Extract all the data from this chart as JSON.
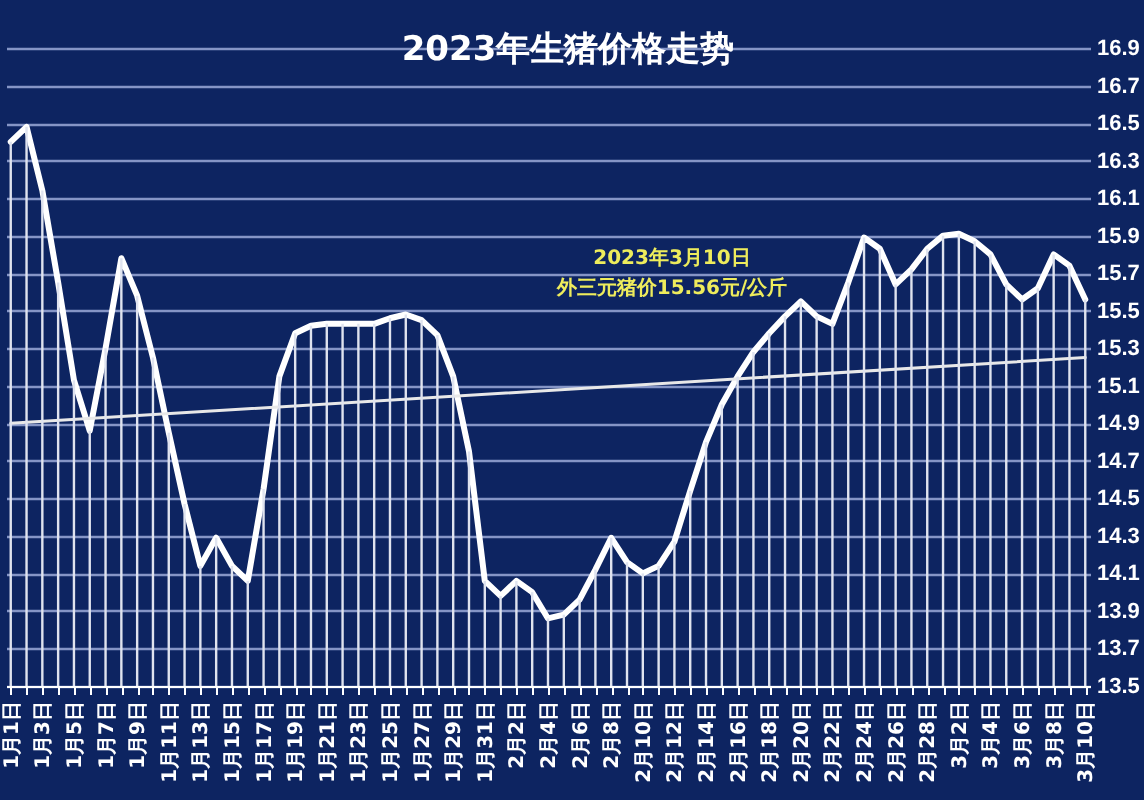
{
  "chart_data": {
    "type": "line",
    "title": "2023年生猪价格走势",
    "categories": [
      "1月1日",
      null,
      "1月3日",
      null,
      "1月5日",
      null,
      "1月7日",
      null,
      "1月9日",
      null,
      "1月11日",
      null,
      "1月13日",
      null,
      "1月15日",
      null,
      "1月17日",
      null,
      "1月19日",
      null,
      "1月21日",
      null,
      "1月23日",
      null,
      "1月25日",
      null,
      "1月27日",
      null,
      "1月29日",
      null,
      "1月31日",
      null,
      "2月2日",
      null,
      "2月4日",
      null,
      "2月6日",
      null,
      "2月8日",
      null,
      "2月10日",
      null,
      "2月12日",
      null,
      "2月14日",
      null,
      "2月16日",
      null,
      "2月18日",
      null,
      "2月20日",
      null,
      "2月22日",
      null,
      "2月24日",
      null,
      "2月26日",
      null,
      "2月28日",
      null,
      "3月2日",
      null,
      "3月4日",
      null,
      "3月6日",
      null,
      "3月8日",
      null,
      "3月10日"
    ],
    "series": [
      {
        "color": "#ffffff",
        "values": [
          16.4,
          16.48,
          16.14,
          15.65,
          15.13,
          14.86,
          15.3,
          15.78,
          15.58,
          15.25,
          14.85,
          14.47,
          14.14,
          14.29,
          14.14,
          14.06,
          14.55,
          15.15,
          15.38,
          15.42,
          15.43,
          15.43,
          15.43,
          15.43,
          15.46,
          15.48,
          15.45,
          15.37,
          15.15,
          14.75,
          14.06,
          13.98,
          14.06,
          14.0,
          13.86,
          13.88,
          13.96,
          14.12,
          14.29,
          14.16,
          14.1,
          14.14,
          14.27,
          14.54,
          14.8,
          15.0,
          15.15,
          15.28,
          15.38,
          15.47,
          15.55,
          15.47,
          15.43,
          15.65,
          15.89,
          15.83,
          15.64,
          15.72,
          15.83,
          15.9,
          15.91,
          15.87,
          15.8,
          15.64,
          15.56,
          15.62,
          15.8,
          15.74,
          15.56
        ]
      },
      {
        "type": "line",
        "color": "#e8e8e8",
        "x": [
          "1月1日",
          "3月10日"
        ],
        "values": [
          14.9,
          15.25
        ]
      },
      {
        "type": "bar",
        "color": "#dfe3ef",
        "values": [
          16.4,
          16.48,
          16.14,
          15.65,
          15.13,
          14.86,
          15.3,
          15.78,
          15.58,
          15.25,
          14.85,
          14.47,
          14.14,
          14.29,
          14.14,
          14.06,
          14.55,
          15.15,
          15.38,
          15.42,
          15.43,
          15.43,
          15.43,
          15.43,
          15.46,
          15.48,
          15.45,
          15.37,
          15.15,
          14.75,
          14.06,
          13.98,
          14.06,
          14.0,
          13.86,
          13.88,
          13.96,
          14.12,
          14.29,
          14.16,
          14.1,
          14.14,
          14.27,
          14.54,
          14.8,
          15.0,
          15.15,
          15.28,
          15.38,
          15.47,
          15.55,
          15.47,
          15.43,
          15.65,
          15.89,
          15.83,
          15.64,
          15.72,
          15.83,
          15.9,
          15.91,
          15.87,
          15.8,
          15.64,
          15.56,
          15.62,
          15.8,
          15.74,
          15.56
        ]
      }
    ],
    "ylim": [
      13.5,
      16.9
    ],
    "yticks": [
      13.5,
      13.7,
      13.9,
      14.1,
      14.3,
      14.5,
      14.7,
      14.9,
      15.1,
      15.3,
      15.5,
      15.7,
      15.9,
      16.1,
      16.3,
      16.5,
      16.7,
      16.9
    ],
    "grid": "y",
    "annotations": [
      "2023年3月10日",
      "外三元猪价15.56元/公斤"
    ]
  }
}
